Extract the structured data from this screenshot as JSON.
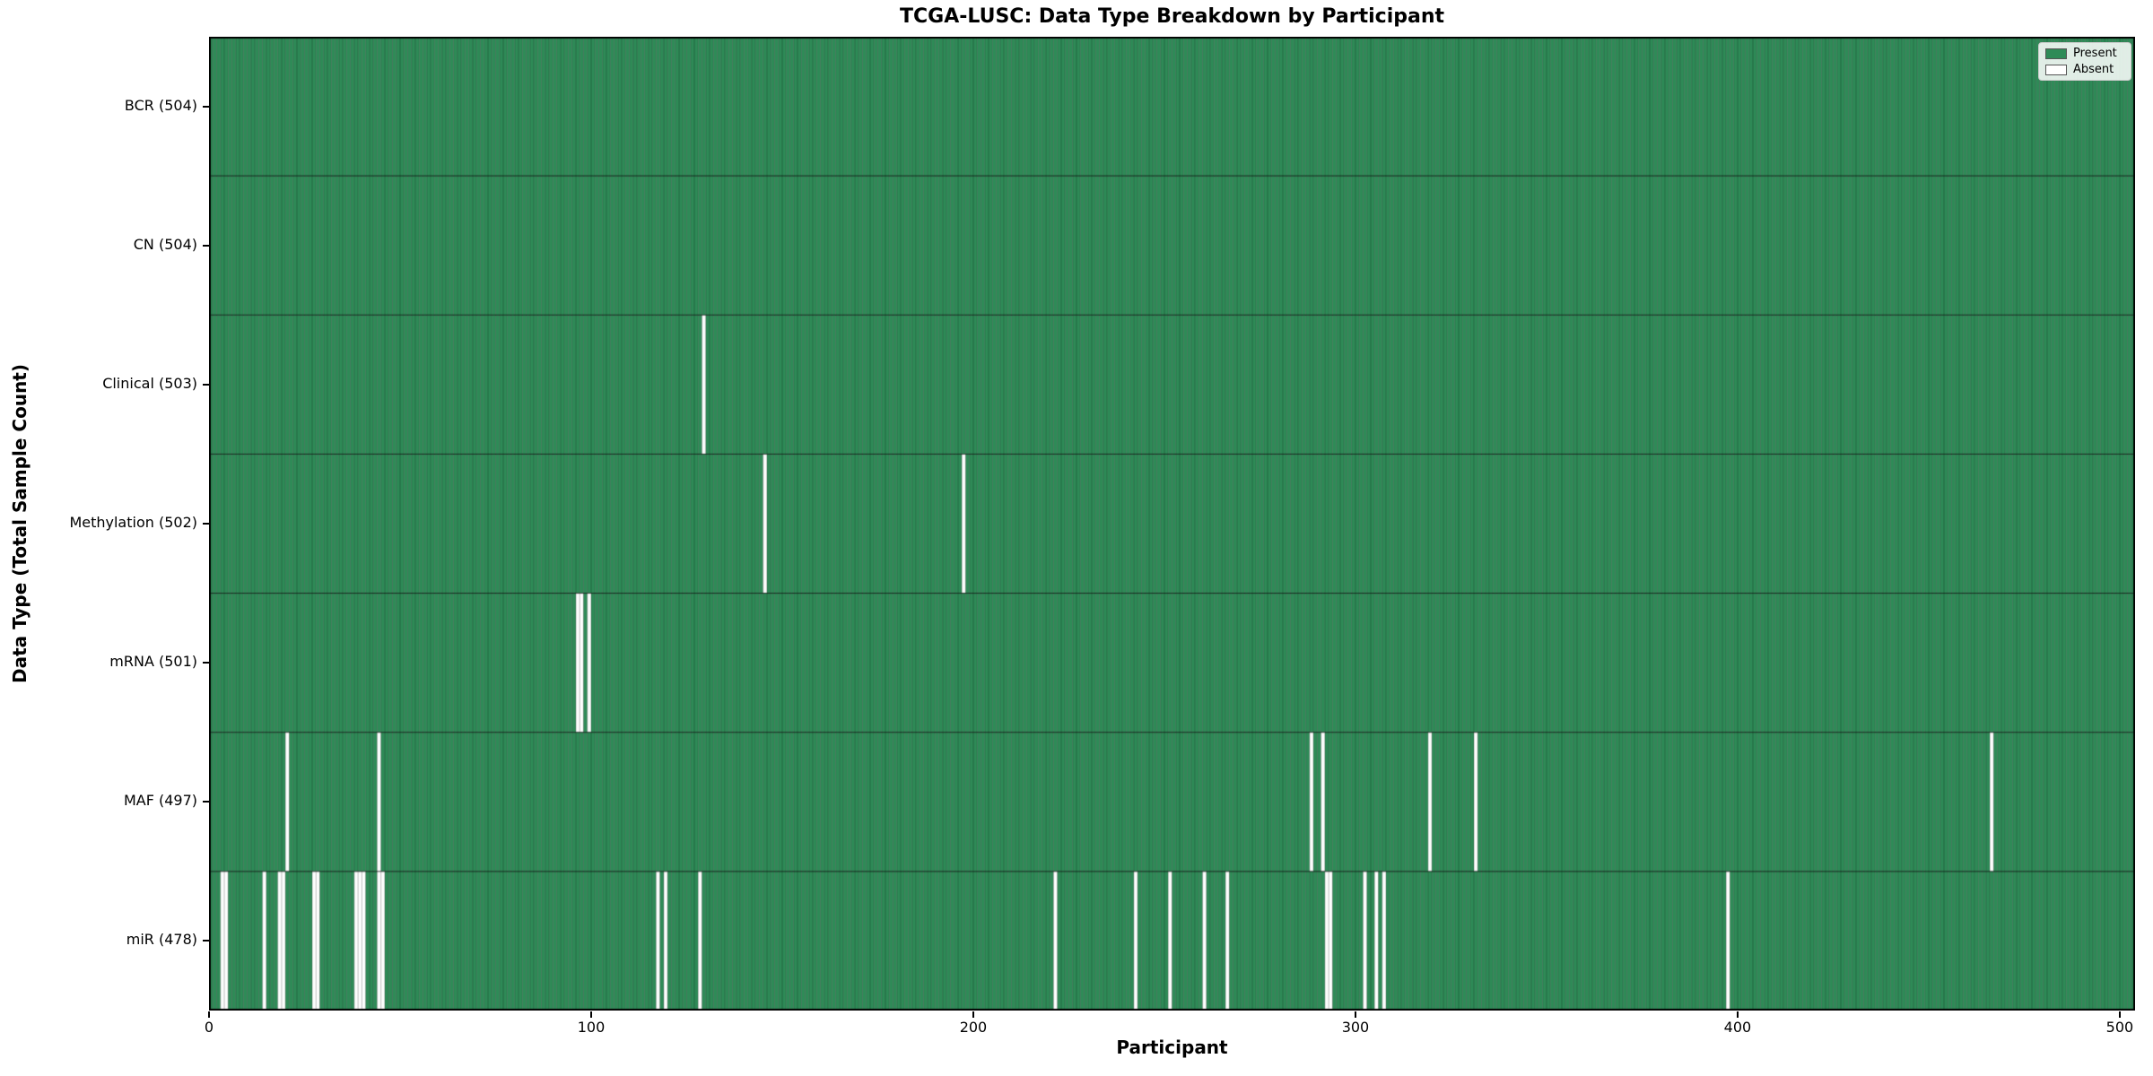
{
  "chart_data": {
    "type": "heatmap",
    "title": "TCGA-LUSC: Data Type Breakdown by Participant",
    "xlabel": "Participant",
    "ylabel": "Data Type (Total Sample Count)",
    "x_ticks": [
      0,
      100,
      200,
      300,
      400,
      500
    ],
    "xlim": [
      0,
      504
    ],
    "n_participants": 504,
    "grid": false,
    "legend": {
      "position": "upper-right",
      "entries": [
        {
          "label": "Present",
          "color": "#2e8b57"
        },
        {
          "label": "Absent",
          "color": "#ffffff"
        }
      ]
    },
    "colors": {
      "present": "#2e8b57",
      "absent": "#ffffff",
      "bar_edge": "rgba(0,0,0,0.45)",
      "row_separator": "rgba(0,0,0,0.75)",
      "frame": "#000000"
    },
    "rows": [
      {
        "label": "BCR (504)",
        "data_type": "BCR",
        "total_samples": 504,
        "absent_participants": []
      },
      {
        "label": "CN (504)",
        "data_type": "CN",
        "total_samples": 504,
        "absent_participants": []
      },
      {
        "label": "Clinical (503)",
        "data_type": "Clinical",
        "total_samples": 503,
        "absent_participants": [
          129
        ]
      },
      {
        "label": "Methylation (502)",
        "data_type": "Methylation",
        "total_samples": 502,
        "absent_participants": [
          145,
          197
        ]
      },
      {
        "label": "mRNA (501)",
        "data_type": "mRNA",
        "total_samples": 501,
        "absent_participants": [
          96,
          97,
          99
        ]
      },
      {
        "label": "MAF (497)",
        "data_type": "MAF",
        "total_samples": 497,
        "absent_participants": [
          20,
          44,
          288,
          291,
          319,
          331,
          466
        ]
      },
      {
        "label": "miR (478)",
        "data_type": "miR",
        "total_samples": 478,
        "absent_participants": [
          3,
          4,
          14,
          18,
          19,
          27,
          28,
          38,
          39,
          40,
          44,
          45,
          117,
          119,
          128,
          221,
          242,
          251,
          260,
          266,
          292,
          293,
          302,
          305,
          307,
          397
        ]
      }
    ]
  }
}
